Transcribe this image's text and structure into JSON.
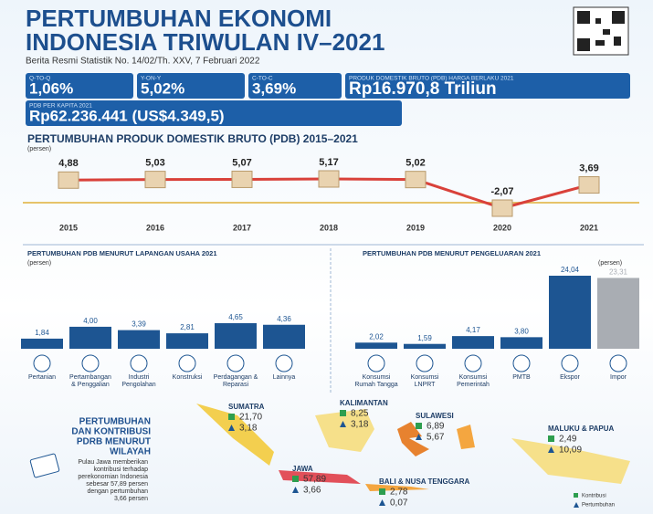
{
  "header": {
    "title_lines": [
      "PERTUMBUHAN EKONOMI",
      "INDONESIA TRIWULAN IV–2021"
    ],
    "subtitle": "Berita Resmi Statistik No. 14/02/Th. XXV, 7 Februari 2022"
  },
  "stats": [
    {
      "label": "Q-TO-Q",
      "value": "1,06%"
    },
    {
      "label": "Y-ON-Y",
      "value": "5,02%"
    },
    {
      "label": "C-TO-C",
      "value": "3,69%"
    },
    {
      "label": "PRODUK DOMESTIK BRUTO (PDB) HARGA BERLAKU 2021",
      "value": "Rp16.970,8 Triliun"
    },
    {
      "label": "PDB PER KAPITA 2021",
      "value": "Rp62.236.441 (US$4.349,5)"
    }
  ],
  "chart_data": [
    {
      "type": "line",
      "title": "PERTUMBUHAN PRODUK DOMESTIK BRUTO (PDB) 2015–2021",
      "ylabel": "(persen)",
      "categories": [
        "2015",
        "2016",
        "2017",
        "2018",
        "2019",
        "2020",
        "2021"
      ],
      "values": [
        4.88,
        5.03,
        5.07,
        5.17,
        5.02,
        -2.07,
        3.69
      ],
      "value_labels": [
        "4,88",
        "5,03",
        "5,07",
        "5,17",
        "5,02",
        "-2,07",
        "3,69"
      ],
      "color": "#d9413a"
    },
    {
      "type": "bar",
      "title": "PERTUMBUHAN PDB MENURUT LAPANGAN USAHA 2021",
      "ylabel": "(persen)",
      "categories": [
        "Pertanian",
        "Pertambangan & Penggalian",
        "Industri Pengolahan",
        "Konstruksi",
        "Perdagangan & Reparasi",
        "Lainnya"
      ],
      "values": [
        1.84,
        4.0,
        3.39,
        2.81,
        4.65,
        4.36
      ],
      "value_labels": [
        "1,84",
        "4,00",
        "3,39",
        "2,81",
        "4,65",
        "4,36"
      ],
      "colors": [
        "#1d5592",
        "#1d5592",
        "#1d5592",
        "#1d5592",
        "#1d5592",
        "#1d5592"
      ]
    },
    {
      "type": "bar",
      "title": "PERTUMBUHAN PDB MENURUT PENGELUARAN 2021",
      "ylabel": "(persen)",
      "categories": [
        "Konsumsi Rumah Tangga",
        "Konsumsi LNPRT",
        "Konsumsi Pemerintah",
        "PMTB",
        "Ekspor",
        "Impor"
      ],
      "values": [
        2.02,
        1.59,
        4.17,
        3.8,
        24.04,
        23.31
      ],
      "value_labels": [
        "2,02",
        "1,59",
        "4,17",
        "3,80",
        "24,04",
        "23,31"
      ],
      "colors": [
        "#1d5592",
        "#1d5592",
        "#1d5592",
        "#1d5592",
        "#1d5592",
        "#a9adb3"
      ]
    }
  ],
  "map": {
    "title_lines": [
      "PERTUMBUHAN",
      "DAN KONTRIBUSI",
      "PDRB MENURUT",
      "WILAYAH"
    ],
    "note": "Pulau Jawa memberikan kontribusi terhadap perekonomian Indonesia sebesar 57,89 persen dengan pertumbuhan 3,66 persen",
    "regions": [
      {
        "name": "SUMATRA",
        "kontribusi": "21,70",
        "pertumbuhan": "3,18"
      },
      {
        "name": "KALIMANTAN",
        "kontribusi": "8,25",
        "pertumbuhan": "3,18"
      },
      {
        "name": "SULAWESI",
        "kontribusi": "6,89",
        "pertumbuhan": "5,67"
      },
      {
        "name": "MALUKU & PAPUA",
        "kontribusi": "2,49",
        "pertumbuhan": "10,09"
      },
      {
        "name": "JAWA",
        "kontribusi": "57,89",
        "pertumbuhan": "3,66"
      },
      {
        "name": "BALI & NUSA TENGGARA",
        "kontribusi": "2,78",
        "pertumbuhan": "0,07"
      }
    ],
    "legend": [
      "Kontribusi",
      "Pertumbuhan"
    ]
  }
}
